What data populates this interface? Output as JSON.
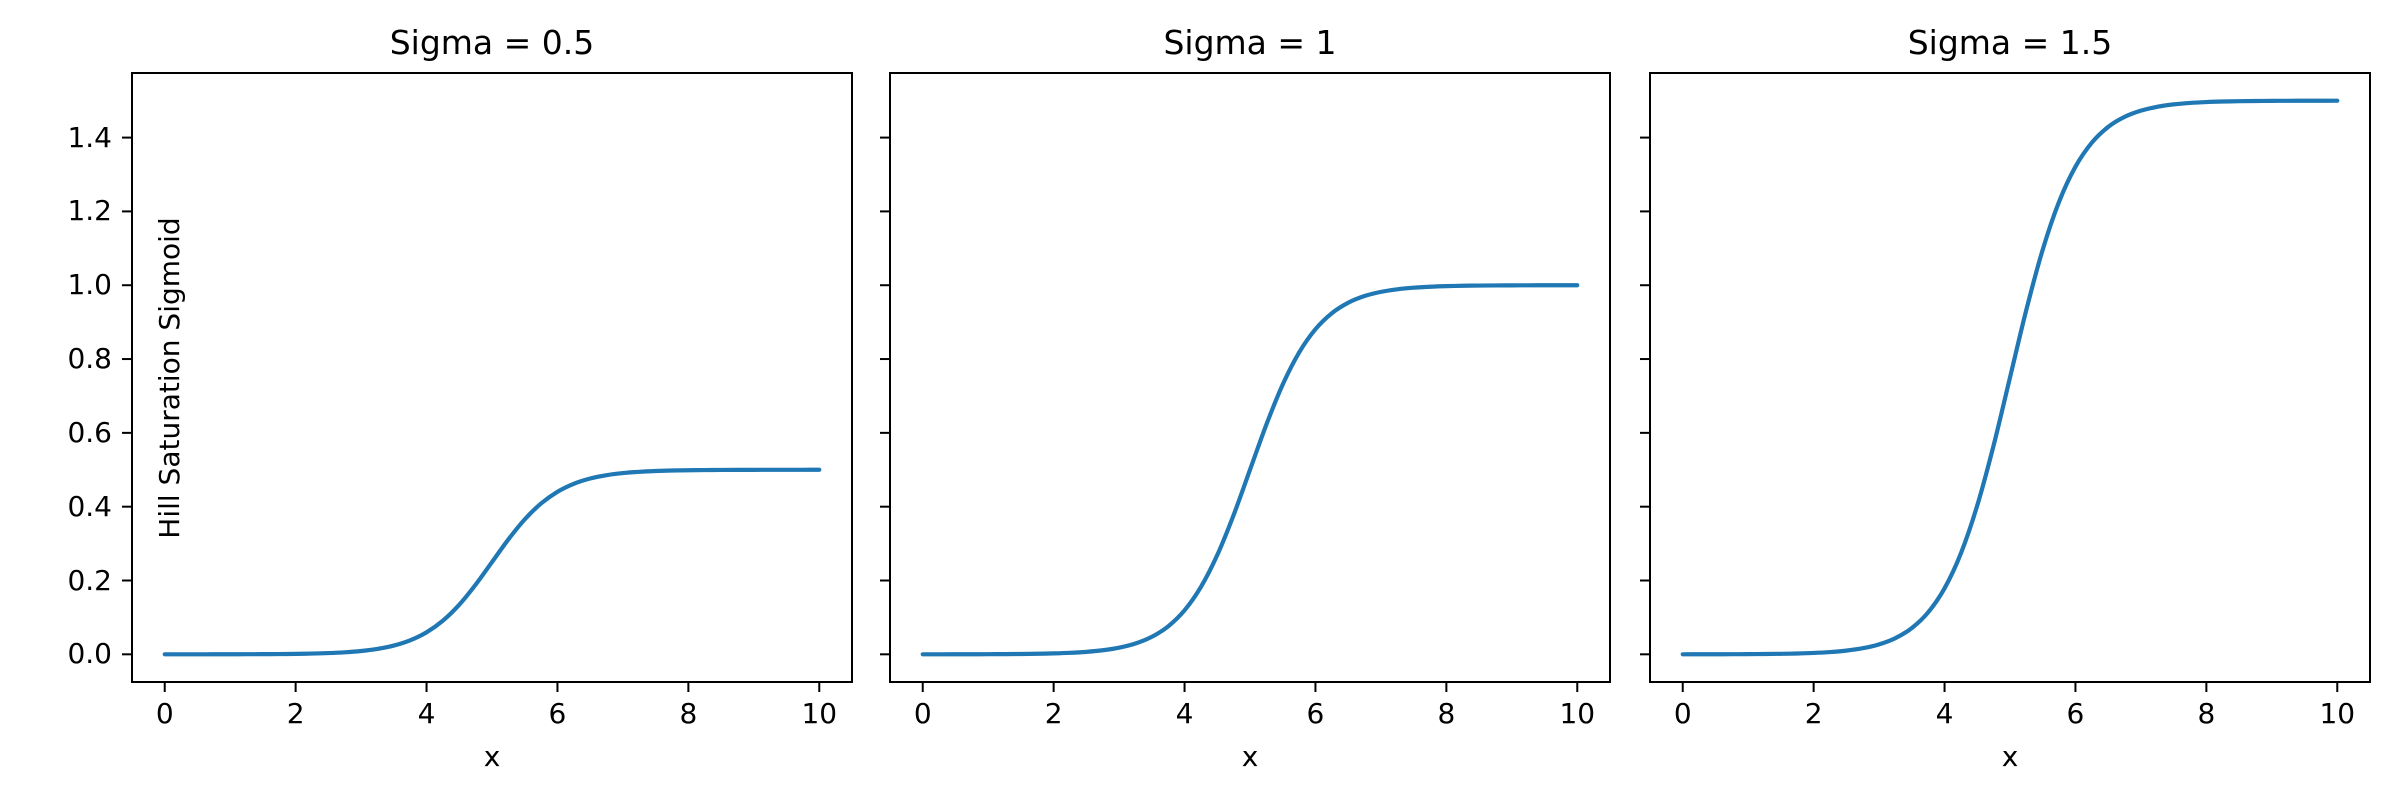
{
  "figure": {
    "background": "#ffffff",
    "text_color": "#000000",
    "spine_color": "#000000"
  },
  "chart_data": [
    {
      "type": "line",
      "title": "Sigma = 0.5",
      "xlabel": "x",
      "ylabel": "Hill Saturation Sigmoid",
      "line_color": "#1f77b4",
      "xlim": [
        -0.5,
        10.5
      ],
      "ylim": [
        -0.075,
        1.575
      ],
      "grid": false,
      "legend": "none",
      "xtick_values": [
        0,
        2,
        4,
        6,
        8,
        10
      ],
      "xtick_labels": [
        "0",
        "2",
        "4",
        "6",
        "8",
        "10"
      ],
      "ytick_values": [
        0.0,
        0.2,
        0.4,
        0.6,
        0.8,
        1.0,
        1.2,
        1.4
      ],
      "ytick_labels": [
        "0.0",
        "0.2",
        "0.4",
        "0.6",
        "0.8",
        "1.0",
        "1.2",
        "1.4"
      ],
      "show_ytick_labels": true,
      "x": [
        0,
        0.25,
        0.5,
        0.75,
        1,
        1.25,
        1.5,
        1.75,
        2,
        2.25,
        2.5,
        2.75,
        3,
        3.25,
        3.5,
        3.75,
        4,
        4.25,
        4.5,
        4.75,
        5,
        5.25,
        5.5,
        5.75,
        6,
        6.25,
        6.5,
        6.75,
        7,
        7.25,
        7.5,
        7.75,
        8,
        8.25,
        8.5,
        8.75,
        9,
        9.25,
        9.5,
        9.75,
        10
      ],
      "y": [
        2e-05,
        4e-05,
        6e-05,
        0.0001,
        0.00017,
        0.00028,
        0.00046,
        0.00075,
        0.00123,
        0.00203,
        0.00335,
        0.00549,
        0.009,
        0.01466,
        0.02371,
        0.03793,
        0.0596,
        0.09121,
        0.13447,
        0.18877,
        0.25,
        0.31123,
        0.36553,
        0.40879,
        0.4404,
        0.46207,
        0.47629,
        0.48534,
        0.49101,
        0.49451,
        0.49665,
        0.49797,
        0.49877,
        0.49925,
        0.49954,
        0.49972,
        0.49983,
        0.4999,
        0.49994,
        0.49996,
        0.49998
      ]
    },
    {
      "type": "line",
      "title": "Sigma = 1",
      "xlabel": "x",
      "ylabel": "",
      "line_color": "#1f77b4",
      "xlim": [
        -0.5,
        10.5
      ],
      "ylim": [
        -0.075,
        1.575
      ],
      "grid": false,
      "legend": "none",
      "xtick_values": [
        0,
        2,
        4,
        6,
        8,
        10
      ],
      "xtick_labels": [
        "0",
        "2",
        "4",
        "6",
        "8",
        "10"
      ],
      "ytick_values": [
        0.0,
        0.2,
        0.4,
        0.6,
        0.8,
        1.0,
        1.2,
        1.4
      ],
      "ytick_labels": [],
      "show_ytick_labels": false,
      "x": [
        0,
        0.25,
        0.5,
        0.75,
        1,
        1.25,
        1.5,
        1.75,
        2,
        2.25,
        2.5,
        2.75,
        3,
        3.25,
        3.5,
        3.75,
        4,
        4.25,
        4.5,
        4.75,
        5,
        5.25,
        5.5,
        5.75,
        6,
        6.25,
        6.5,
        6.75,
        7,
        7.25,
        7.5,
        7.75,
        8,
        8.25,
        8.5,
        8.75,
        9,
        9.25,
        9.5,
        9.75,
        10
      ],
      "y": [
        5e-05,
        7e-05,
        0.00012,
        0.0002,
        0.00034,
        0.00055,
        0.00091,
        0.0015,
        0.00247,
        0.00407,
        0.00669,
        0.01099,
        0.01799,
        0.02931,
        0.04743,
        0.07586,
        0.1192,
        0.18243,
        0.26894,
        0.37754,
        0.5,
        0.62246,
        0.73106,
        0.81757,
        0.8808,
        0.92414,
        0.95257,
        0.97069,
        0.98201,
        0.98901,
        0.99331,
        0.99593,
        0.99753,
        0.9985,
        0.99909,
        0.99945,
        0.99967,
        0.9998,
        0.99988,
        0.99993,
        0.99995
      ]
    },
    {
      "type": "line",
      "title": "Sigma = 1.5",
      "xlabel": "x",
      "ylabel": "",
      "line_color": "#1f77b4",
      "xlim": [
        -0.5,
        10.5
      ],
      "ylim": [
        -0.075,
        1.575
      ],
      "grid": false,
      "legend": "none",
      "xtick_values": [
        0,
        2,
        4,
        6,
        8,
        10
      ],
      "xtick_labels": [
        "0",
        "2",
        "4",
        "6",
        "8",
        "10"
      ],
      "ytick_values": [
        0.0,
        0.2,
        0.4,
        0.6,
        0.8,
        1.0,
        1.2,
        1.4
      ],
      "ytick_labels": [],
      "show_ytick_labels": false,
      "x": [
        0,
        0.25,
        0.5,
        0.75,
        1,
        1.25,
        1.5,
        1.75,
        2,
        2.25,
        2.5,
        2.75,
        3,
        3.25,
        3.5,
        3.75,
        4,
        4.25,
        4.5,
        4.75,
        5,
        5.25,
        5.5,
        5.75,
        6,
        6.25,
        6.5,
        6.75,
        7,
        7.25,
        7.5,
        7.75,
        8,
        8.25,
        8.5,
        8.75,
        9,
        9.25,
        9.5,
        9.75,
        10
      ],
      "y": [
        7e-05,
        0.00011,
        0.00019,
        0.0003,
        0.0005,
        0.00083,
        0.00137,
        0.00225,
        0.0037,
        0.0061,
        0.01004,
        0.01648,
        0.02698,
        0.04397,
        0.07114,
        0.11379,
        0.1788,
        0.27364,
        0.40341,
        0.56631,
        0.75,
        0.93369,
        1.09659,
        1.22636,
        1.3212,
        1.38621,
        1.42886,
        1.45603,
        1.47302,
        1.48352,
        1.48996,
        1.4939,
        1.49629,
        1.49774,
        1.49863,
        1.49917,
        1.4995,
        1.4997,
        1.49981,
        1.49989,
        1.49993
      ]
    }
  ]
}
